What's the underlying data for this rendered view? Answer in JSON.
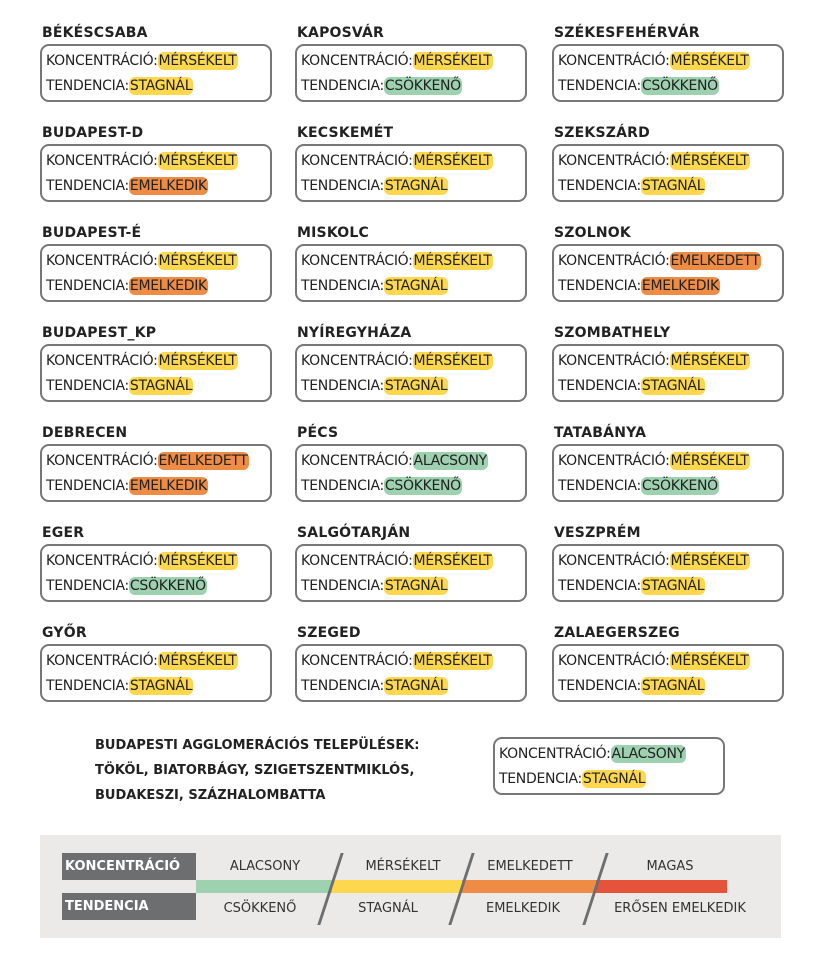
{
  "labels": {
    "concentration": "KONCENTRÁCIÓ:",
    "trend": "TENDENCIA:"
  },
  "colors": {
    "alacsony": "#9dd1b0",
    "mersekelt": "#fdd84f",
    "emelkedett": "#ee8c45",
    "magas": "#e5533a",
    "label_bg": "#6d6e70",
    "legend_bg": "#ebeae8"
  },
  "cities": [
    {
      "name": "BÉKÉSCSABA",
      "conc": "MÉRSÉKELT",
      "cc": "y",
      "trend": "STAGNÁL",
      "tc": "y"
    },
    {
      "name": "KAPOSVÁR",
      "conc": "MÉRSÉKELT",
      "cc": "y",
      "trend": "CSÖKKENŐ",
      "tc": "g"
    },
    {
      "name": "SZÉKESFEHÉRVÁR",
      "conc": "MÉRSÉKELT",
      "cc": "y",
      "trend": "CSÖKKENŐ",
      "tc": "g"
    },
    {
      "name": "BUDAPEST-D",
      "conc": "MÉRSÉKELT",
      "cc": "y",
      "trend": "EMELKEDIK",
      "tc": "o"
    },
    {
      "name": "KECSKEMÉT",
      "conc": "MÉRSÉKELT",
      "cc": "y",
      "trend": "STAGNÁL",
      "tc": "y"
    },
    {
      "name": "SZEKSZÁRD",
      "conc": "MÉRSÉKELT",
      "cc": "y",
      "trend": "STAGNÁL",
      "tc": "y"
    },
    {
      "name": "BUDAPEST-É",
      "conc": "MÉRSÉKELT",
      "cc": "y",
      "trend": "EMELKEDIK",
      "tc": "o"
    },
    {
      "name": "MISKOLC",
      "conc": "MÉRSÉKELT",
      "cc": "y",
      "trend": "STAGNÁL",
      "tc": "y"
    },
    {
      "name": "SZOLNOK",
      "conc": "EMELKEDETT",
      "cc": "o",
      "trend": "EMELKEDIK",
      "tc": "o"
    },
    {
      "name": "BUDAPEST_KP",
      "conc": "MÉRSÉKELT",
      "cc": "y",
      "trend": "STAGNÁL",
      "tc": "y"
    },
    {
      "name": "NYÍREGYHÁZA",
      "conc": "MÉRSÉKELT",
      "cc": "y",
      "trend": "STAGNÁL",
      "tc": "y"
    },
    {
      "name": "SZOMBATHELY",
      "conc": "MÉRSÉKELT",
      "cc": "y",
      "trend": "STAGNÁL",
      "tc": "y"
    },
    {
      "name": "DEBRECEN",
      "conc": "EMELKEDETT",
      "cc": "o",
      "trend": "EMELKEDIK",
      "tc": "o"
    },
    {
      "name": "PÉCS",
      "conc": "ALACSONY",
      "cc": "g",
      "trend": "CSÖKKENŐ",
      "tc": "g"
    },
    {
      "name": "TATABÁNYA",
      "conc": "MÉRSÉKELT",
      "cc": "y",
      "trend": "CSÖKKENŐ",
      "tc": "g"
    },
    {
      "name": "EGER",
      "conc": "MÉRSÉKELT",
      "cc": "y",
      "trend": "CSÖKKENŐ",
      "tc": "g"
    },
    {
      "name": "SALGÓTARJÁN",
      "conc": "MÉRSÉKELT",
      "cc": "y",
      "trend": "STAGNÁL",
      "tc": "y"
    },
    {
      "name": "VESZPRÉM",
      "conc": "MÉRSÉKELT",
      "cc": "y",
      "trend": "STAGNÁL",
      "tc": "y"
    },
    {
      "name": "GYŐR",
      "conc": "MÉRSÉKELT",
      "cc": "y",
      "trend": "STAGNÁL",
      "tc": "y"
    },
    {
      "name": "SZEGED",
      "conc": "MÉRSÉKELT",
      "cc": "y",
      "trend": "STAGNÁL",
      "tc": "y"
    },
    {
      "name": "ZALAEGERSZEG",
      "conc": "MÉRSÉKELT",
      "cc": "y",
      "trend": "STAGNÁL",
      "tc": "y"
    }
  ],
  "agglomeration": {
    "lines": [
      "BUDAPESTI AGGLOMERÁCIÓS TELEPÜLÉSEK:",
      "TÖKÖL, BIATORBÁGY, SZIGETSZENTMIKLÓS,",
      "BUDAKESZI, SZÁZHALOMBATTA"
    ],
    "conc": "ALACSONY",
    "trend": "STAGNÁL"
  },
  "legend": {
    "conc_label": "KONCENTRÁCIÓ",
    "trend_label": "TENDENCIA",
    "conc_levels": [
      "ALACSONY",
      "MÉRSÉKELT",
      "EMELKEDETT",
      "MAGAS"
    ],
    "trend_levels": [
      "CSÖKKENŐ",
      "STAGNÁL",
      "EMELKEDIK",
      "ERŐSEN EMELKEDIK"
    ]
  }
}
